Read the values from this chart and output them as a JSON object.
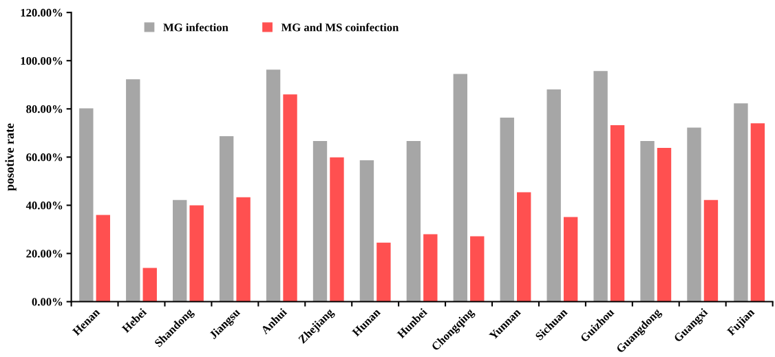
{
  "chart_data": {
    "type": "bar",
    "ylabel": "posotive rate",
    "categories": [
      "Henan",
      "Hebei",
      "Shandong",
      "Jiangsu",
      "Anhui",
      "Zhejiang",
      "Hunan",
      "Hunbei",
      "Chongqing",
      "Yunnan",
      "Sichuan",
      "Guizhou",
      "Guangdong",
      "Guangxi",
      "Fujian"
    ],
    "series": [
      {
        "name": "MG infection",
        "color": "#a6a6a6",
        "values": [
          80.2,
          92.3,
          42.2,
          68.7,
          96.3,
          66.7,
          58.7,
          66.7,
          94.5,
          76.4,
          88.1,
          95.7,
          66.7,
          72.2,
          82.3
        ]
      },
      {
        "name": "MG and MS coinfection",
        "color": "#ff5050",
        "values": [
          36.0,
          14.0,
          40.0,
          43.3,
          86.0,
          59.9,
          24.5,
          28.0,
          27.1,
          45.4,
          35.1,
          73.2,
          63.8,
          42.2,
          74.0
        ]
      }
    ],
    "ylim": [
      0,
      120
    ],
    "yticks": [
      {
        "value": 0,
        "label": "0.00%"
      },
      {
        "value": 20,
        "label": "20.00%"
      },
      {
        "value": 40,
        "label": "40.00%"
      },
      {
        "value": 60,
        "label": "60.00%"
      },
      {
        "value": 80,
        "label": "80.00%"
      },
      {
        "value": 100,
        "label": "100.00%"
      },
      {
        "value": 120,
        "label": "120.00%"
      }
    ],
    "grid": false,
    "legend": "top left"
  }
}
